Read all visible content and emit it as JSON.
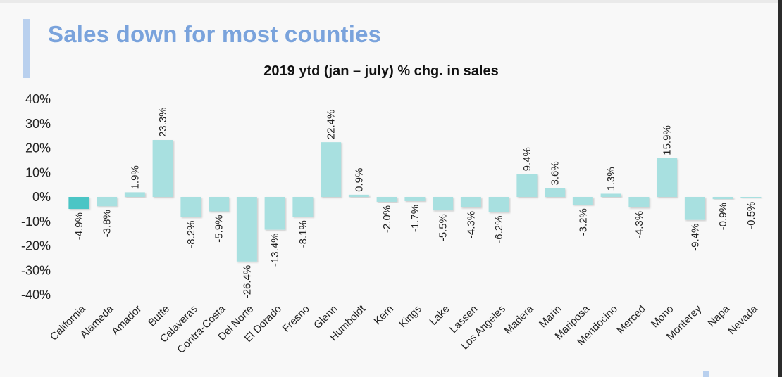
{
  "header": {
    "title": "Sales down for most counties"
  },
  "chart_data": {
    "type": "bar",
    "title": "2019 ytd (jan – july) % chg. in sales",
    "xlabel": "",
    "ylabel": "",
    "ylim": [
      -40,
      40
    ],
    "yticks": [
      "40%",
      "30%",
      "20%",
      "10%",
      "0%",
      "-10%",
      "-20%",
      "-30%",
      "-40%"
    ],
    "grid": false,
    "categories": [
      "California",
      "Alameda",
      "Amador",
      "Butte",
      "Calaveras",
      "Contra-Costa",
      "Del Norte",
      "El Dorado",
      "Fresno",
      "Glenn",
      "Humboldt",
      "Kern",
      "Kings",
      "Lake",
      "Lassen",
      "Los Angeles",
      "Madera",
      "Marin",
      "Mariposa",
      "Mendocino",
      "Merced",
      "Mono",
      "Monterey",
      "Napa",
      "Nevada"
    ],
    "values": [
      -4.9,
      -3.8,
      1.9,
      23.3,
      -8.2,
      -5.9,
      -26.4,
      -13.4,
      -8.1,
      22.4,
      0.9,
      -2.0,
      -1.7,
      -5.5,
      -4.3,
      -6.2,
      9.4,
      3.6,
      -3.2,
      1.3,
      -4.3,
      15.9,
      -9.4,
      -0.9,
      -0.5
    ],
    "labels": [
      "-4.9%",
      "-3.8%",
      "1.9%",
      "23.3%",
      "-8.2%",
      "-5.9%",
      "-26.4%",
      "-13.4%",
      "-8.1%",
      "22.4%",
      "0.9%",
      "-2.0%",
      "-1.7%",
      "-5.5%",
      "-4.3%",
      "-6.2%",
      "9.4%",
      "3.6%",
      "-3.2%",
      "1.3%",
      "-4.3%",
      "15.9%",
      "-9.4%",
      "-0.9%",
      "-0.5%"
    ],
    "colors": {
      "highlight": "#4cc5c5",
      "bar": "#a8e0e0"
    },
    "highlight_category": "California"
  }
}
